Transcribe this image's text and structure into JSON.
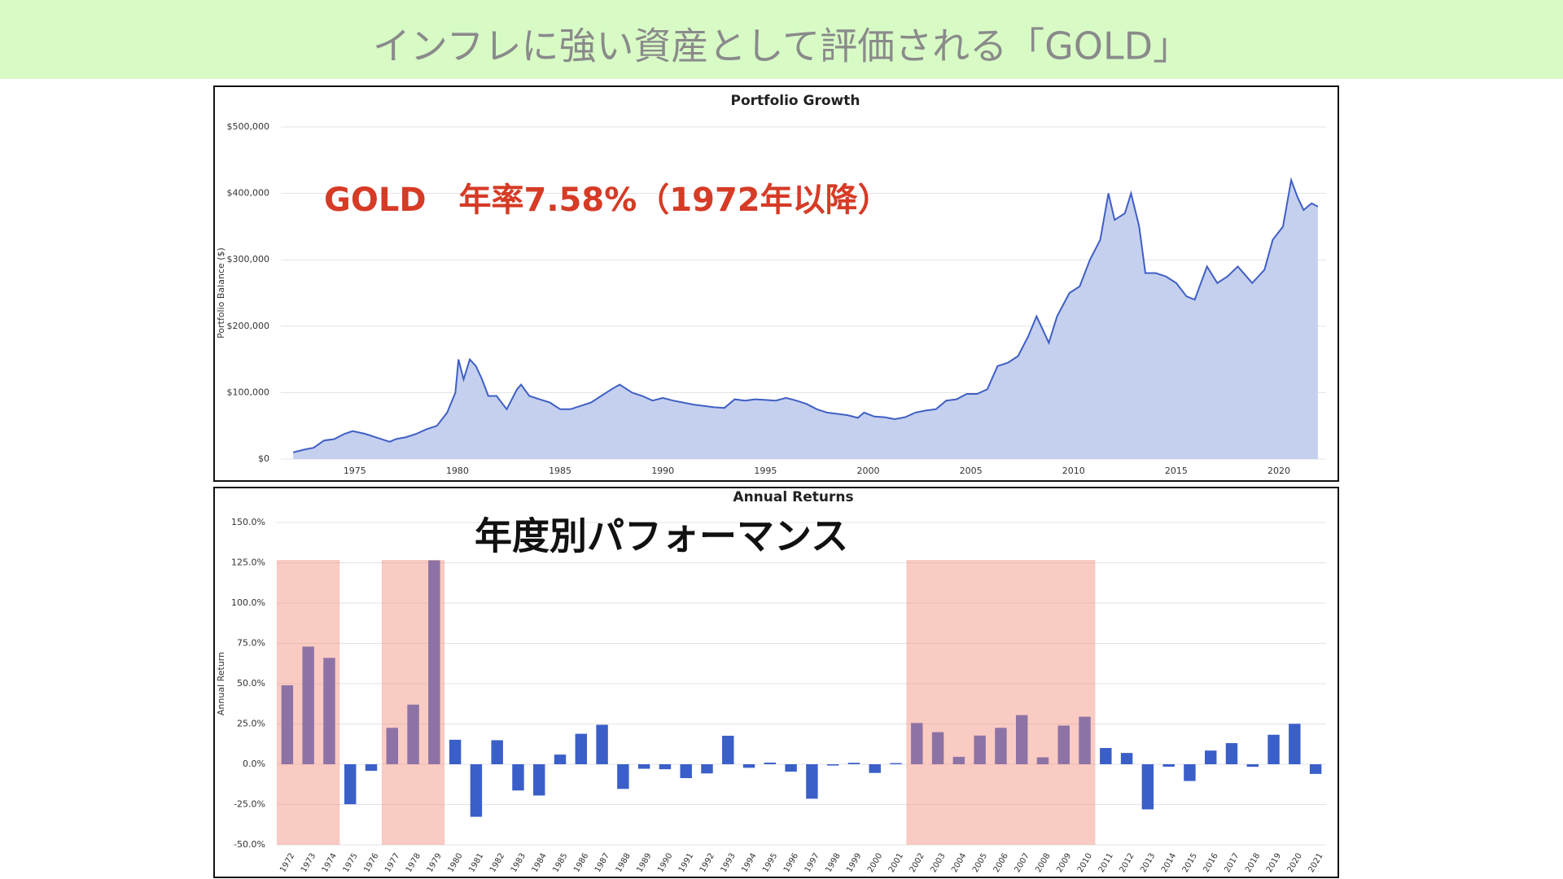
{
  "header": {
    "title": "インフレに強い資産として評価される「GOLD」"
  },
  "chart_data": [
    {
      "type": "area",
      "title": "Portfolio Growth",
      "y_label": "Portfolio Balance ($)",
      "annotation": "GOLD　年率7.58%（1972年以降）",
      "color": "#3f5fc4",
      "fill": "#c5d0ef",
      "x": [
        1972.0,
        1972.5,
        1973.0,
        1973.5,
        1974.0,
        1974.5,
        1974.9,
        1975.5,
        1976.0,
        1976.7,
        1977.0,
        1977.5,
        1978.0,
        1978.5,
        1979.0,
        1979.5,
        1979.9,
        1980.05,
        1980.3,
        1980.6,
        1980.9,
        1981.2,
        1981.5,
        1981.9,
        1982.4,
        1982.9,
        1983.1,
        1983.5,
        1984.0,
        1984.5,
        1985.0,
        1985.5,
        1986.0,
        1986.5,
        1987.0,
        1987.5,
        1987.9,
        1988.5,
        1989.0,
        1989.5,
        1990.0,
        1990.5,
        1991.0,
        1991.5,
        1992.0,
        1992.5,
        1993.0,
        1993.5,
        1994.0,
        1994.5,
        1995.0,
        1995.5,
        1996.0,
        1996.5,
        1997.0,
        1997.5,
        1998.0,
        1998.5,
        1999.0,
        1999.5,
        1999.8,
        2000.3,
        2000.8,
        2001.3,
        2001.8,
        2002.3,
        2002.8,
        2003.3,
        2003.8,
        2004.3,
        2004.8,
        2005.3,
        2005.8,
        2006.3,
        2006.8,
        2007.3,
        2007.8,
        2008.2,
        2008.8,
        2009.2,
        2009.8,
        2010.3,
        2010.8,
        2011.3,
        2011.7,
        2012.0,
        2012.5,
        2012.8,
        2013.2,
        2013.5,
        2014.0,
        2014.5,
        2015.0,
        2015.5,
        2015.9,
        2016.5,
        2017.0,
        2017.5,
        2018.0,
        2018.7,
        2019.3,
        2019.7,
        2020.2,
        2020.6,
        2020.9,
        2021.2,
        2021.6,
        2021.9
      ],
      "values": [
        10000,
        14000,
        17000,
        28000,
        30000,
        38000,
        42000,
        38000,
        33000,
        26000,
        30000,
        33000,
        38000,
        45000,
        50000,
        70000,
        100000,
        150000,
        120000,
        150000,
        140000,
        120000,
        95000,
        95000,
        75000,
        105000,
        112000,
        95000,
        90000,
        85000,
        75000,
        75000,
        80000,
        85000,
        95000,
        105000,
        112000,
        100000,
        95000,
        88000,
        92000,
        88000,
        85000,
        82000,
        80000,
        78000,
        77000,
        90000,
        88000,
        90000,
        89000,
        88000,
        92000,
        88000,
        83000,
        75000,
        70000,
        68000,
        66000,
        62000,
        70000,
        64000,
        63000,
        60000,
        63000,
        70000,
        73000,
        75000,
        88000,
        90000,
        98000,
        98000,
        105000,
        140000,
        145000,
        155000,
        185000,
        215000,
        175000,
        215000,
        250000,
        260000,
        300000,
        330000,
        400000,
        360000,
        370000,
        400000,
        350000,
        280000,
        280000,
        275000,
        265000,
        245000,
        240000,
        290000,
        265000,
        275000,
        290000,
        265000,
        285000,
        330000,
        350000,
        420000,
        395000,
        375000,
        385000,
        380000
      ],
      "xlim": [
        1971.4,
        2022.3
      ],
      "xticks": [
        1975,
        1980,
        1985,
        1990,
        1995,
        2000,
        2005,
        2010,
        2015,
        2020
      ],
      "ylim": [
        0,
        500000
      ],
      "yticks": [
        {
          "value": 0,
          "label": "$0"
        },
        {
          "value": 100000,
          "label": "$100,000"
        },
        {
          "value": 200000,
          "label": "$200,000"
        },
        {
          "value": 300000,
          "label": "$300,000"
        },
        {
          "value": 400000,
          "label": "$400,000"
        },
        {
          "value": 500000,
          "label": "$500,000"
        }
      ],
      "grid": true
    },
    {
      "type": "bar",
      "title": "Annual Returns",
      "y_label": "Annual Return",
      "annotation": "年度別パフォーマンス",
      "color": "#3b5fc9",
      "categories": [
        "1972",
        "1973",
        "1974",
        "1975",
        "1976",
        "1977",
        "1978",
        "1979",
        "1980",
        "1981",
        "1982",
        "1983",
        "1984",
        "1985",
        "1986",
        "1987",
        "1988",
        "1989",
        "1990",
        "1991",
        "1992",
        "1993",
        "1994",
        "1995",
        "1996",
        "1997",
        "1998",
        "1999",
        "2000",
        "2001",
        "2002",
        "2003",
        "2004",
        "2005",
        "2006",
        "2007",
        "2008",
        "2009",
        "2010",
        "2011",
        "2012",
        "2013",
        "2014",
        "2015",
        "2016",
        "2017",
        "2018",
        "2019",
        "2020",
        "2021"
      ],
      "values": [
        49,
        73,
        66,
        -24.8,
        -4.1,
        22.6,
        37,
        126.5,
        15.2,
        -32.6,
        14.9,
        -16.3,
        -19.4,
        6,
        18.9,
        24.5,
        -15.3,
        -2.8,
        -3.1,
        -8.6,
        -5.7,
        17.7,
        -2.2,
        1,
        -4.6,
        -21.4,
        -0.8,
        0.9,
        -5.4,
        0.7,
        25.6,
        19.9,
        4.6,
        17.8,
        22.6,
        30.5,
        4.3,
        24,
        29.5,
        10.1,
        7,
        -28,
        -1.5,
        -10.4,
        8.5,
        13.1,
        -1.6,
        18.3,
        25.1,
        -6
      ],
      "ylim": [
        -50,
        150
      ],
      "yticks": [
        {
          "value": -50,
          "label": "-50.0%"
        },
        {
          "value": -25,
          "label": "-25.0%"
        },
        {
          "value": 0,
          "label": "0.0%"
        },
        {
          "value": 25,
          "label": "25.0%"
        },
        {
          "value": 50,
          "label": "50.0%"
        },
        {
          "value": 75,
          "label": "75.0%"
        },
        {
          "value": 100,
          "label": "100.0%"
        },
        {
          "value": 125,
          "label": "125.0%"
        },
        {
          "value": 150,
          "label": "150.0%"
        }
      ],
      "highlights": [
        [
          "1972",
          "1974"
        ],
        [
          "1977",
          "1979"
        ],
        [
          "2002",
          "2010"
        ]
      ],
      "highlight_color": "rgba(242,140,122,0.45)",
      "grid": true
    }
  ]
}
